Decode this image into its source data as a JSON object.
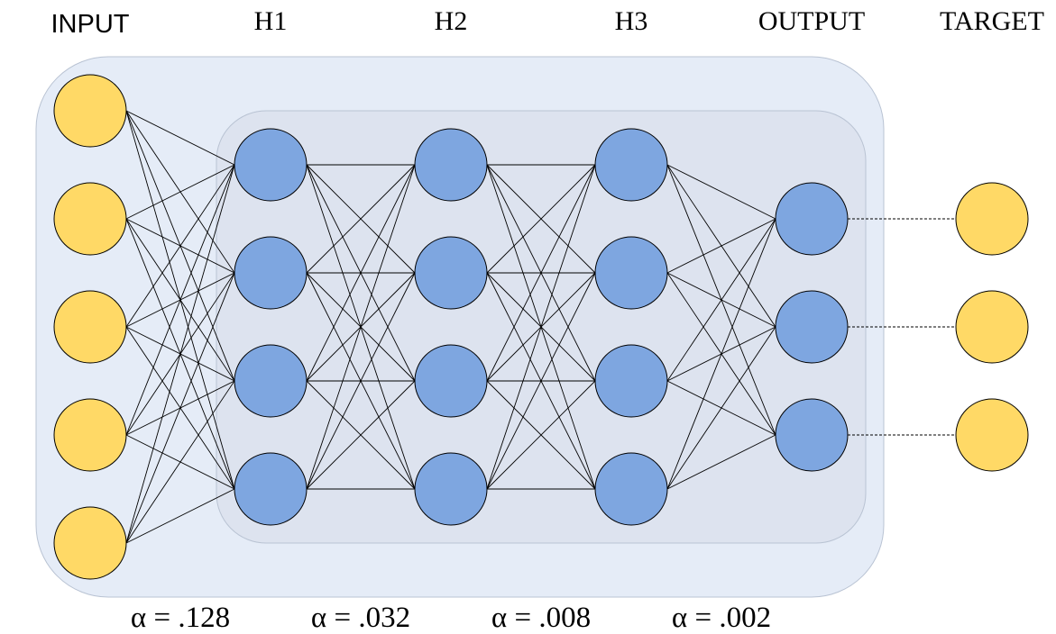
{
  "layers": {
    "input": {
      "label": "INPUT",
      "nodes": 5,
      "color": "#FFD966"
    },
    "h1": {
      "label": "H1",
      "nodes": 4,
      "color": "#7EA6E0"
    },
    "h2": {
      "label": "H2",
      "nodes": 4,
      "color": "#7EA6E0"
    },
    "h3": {
      "label": "H3",
      "nodes": 4,
      "color": "#7EA6E0"
    },
    "output": {
      "label": "OUTPUT",
      "nodes": 3,
      "color": "#7EA6E0"
    },
    "target": {
      "label": "TARGET",
      "nodes": 3,
      "color": "#FFD966"
    }
  },
  "alphas": [
    "α = .128",
    "α = .032",
    "α = .008",
    "α = .002"
  ],
  "colors": {
    "outer_region": "#E5ECF7",
    "inner_region": "#DDE3EF",
    "region_border": "#B9C3D3",
    "edge": "#000000",
    "node_border": "#000000"
  }
}
